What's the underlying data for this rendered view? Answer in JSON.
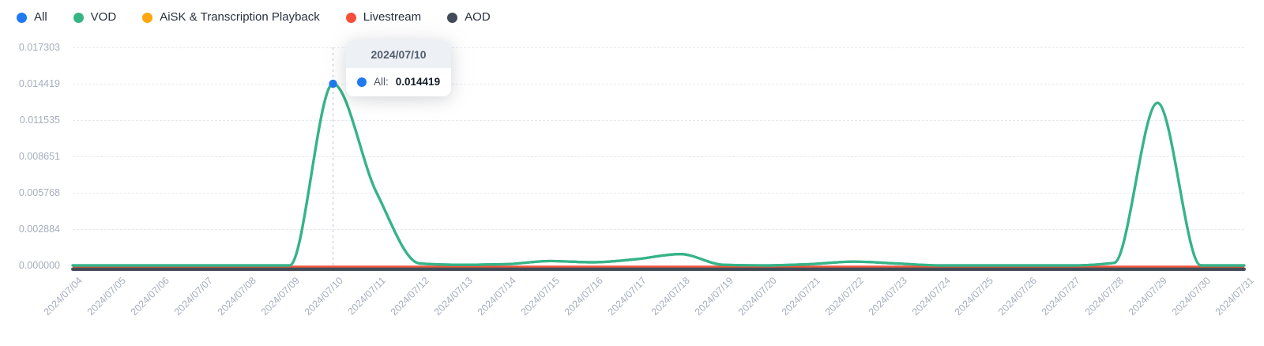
{
  "legend": {
    "items": [
      {
        "label": "All",
        "color": "#1f7af0"
      },
      {
        "label": "VOD",
        "color": "#35b583"
      },
      {
        "label": "AiSK & Transcription Playback",
        "color": "#fba70d"
      },
      {
        "label": "Livestream",
        "color": "#f6503c"
      },
      {
        "label": "AOD",
        "color": "#414b59"
      }
    ]
  },
  "tooltip": {
    "date": "2024/07/10",
    "series_label": "All:",
    "value": "0.014419",
    "dot_color": "#1f7af0"
  },
  "colors": {
    "axis_line": "#4a4f58",
    "grid_line": "#e7e9ed",
    "tick_text": "#a5aebd",
    "pointer_line": "#c7cbd3"
  },
  "chart_data": {
    "type": "line",
    "title": "",
    "xlabel": "",
    "ylabel": "",
    "smooth": true,
    "grid": "horizontal-dashed",
    "legend_position": "top-left",
    "ylim": [
      0,
      0.017303
    ],
    "y_ticks": [
      "0.017303",
      "0.014419",
      "0.011535",
      "0.008651",
      "0.005768",
      "0.002884",
      "0.000000"
    ],
    "x": [
      "2024/07/04",
      "2024/07/05",
      "2024/07/06",
      "2024/07/07",
      "2024/07/08",
      "2024/07/09",
      "2024/07/10",
      "2024/07/11",
      "2024/07/12",
      "2024/07/13",
      "2024/07/14",
      "2024/07/15",
      "2024/07/16",
      "2024/07/17",
      "2024/07/18",
      "2024/07/19",
      "2024/07/20",
      "2024/07/21",
      "2024/07/22",
      "2024/07/23",
      "2024/07/24",
      "2024/07/25",
      "2024/07/26",
      "2024/07/27",
      "2024/07/28",
      "2024/07/29",
      "2024/07/30",
      "2024/07/31"
    ],
    "series": [
      {
        "name": "All",
        "color": "#1f7af0",
        "values": [
          0,
          0,
          0,
          0,
          0,
          0,
          0.014419,
          0.0058,
          0.00015,
          5e-05,
          0.0001,
          0.00035,
          0.00025,
          0.0005,
          0.0009,
          5e-05,
          0,
          0.0001,
          0.0003,
          0.00015,
          0,
          0,
          0,
          0,
          0.0002,
          0.0129,
          0,
          0
        ]
      },
      {
        "name": "VOD",
        "color": "#35b583",
        "values": [
          0,
          0,
          0,
          0,
          0,
          0,
          0.014419,
          0.0058,
          0.00015,
          5e-05,
          0.0001,
          0.00035,
          0.00025,
          0.0005,
          0.0009,
          5e-05,
          0,
          0.0001,
          0.0003,
          0.00015,
          0,
          0,
          0,
          0,
          0.0002,
          0.0129,
          0,
          0
        ]
      },
      {
        "name": "AiSK & Transcription Playback",
        "color": "#fba70d",
        "values": [
          0,
          0,
          0,
          0,
          0,
          0,
          0,
          0,
          0,
          0,
          0,
          0,
          0,
          0,
          0,
          0,
          0,
          0,
          0,
          0,
          0,
          0,
          0,
          0,
          0,
          0,
          0,
          0
        ]
      },
      {
        "name": "Livestream",
        "color": "#f6503c",
        "values": [
          0,
          0,
          0,
          0,
          0,
          0,
          0,
          0,
          0,
          0,
          0,
          0,
          0,
          0,
          0,
          0,
          0,
          0,
          0,
          0,
          0,
          0,
          0,
          0,
          0,
          0,
          0,
          0
        ]
      },
      {
        "name": "AOD",
        "color": "#414b59",
        "values": [
          0,
          0,
          0,
          0,
          0,
          0,
          0,
          0,
          0,
          0,
          0,
          0,
          0,
          0,
          0,
          0,
          0,
          0,
          0,
          0,
          0,
          0,
          0,
          0,
          0,
          0,
          0,
          0
        ]
      }
    ],
    "highlight": {
      "x_index": 6,
      "series": "All",
      "value": 0.014419,
      "date": "2024/07/10"
    }
  }
}
